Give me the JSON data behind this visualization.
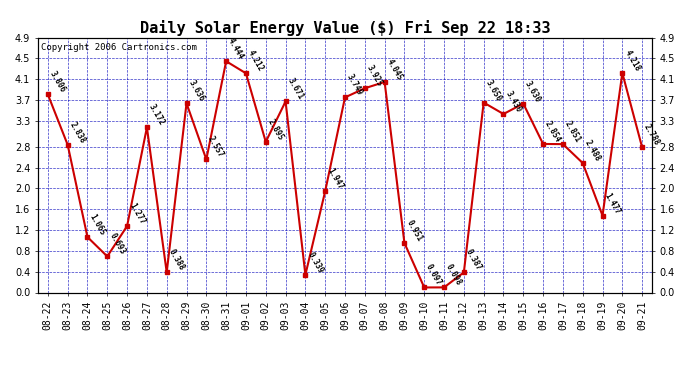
{
  "title": "Daily Solar Energy Value ($) Fri Sep 22 18:33",
  "copyright": "Copyright 2006 Cartronics.com",
  "dates": [
    "08-22",
    "08-23",
    "08-24",
    "08-25",
    "08-26",
    "08-27",
    "08-28",
    "08-29",
    "08-30",
    "08-31",
    "09-01",
    "09-02",
    "09-03",
    "09-04",
    "09-05",
    "09-06",
    "09-07",
    "09-08",
    "09-09",
    "09-10",
    "09-11",
    "09-12",
    "09-13",
    "09-14",
    "09-15",
    "09-16",
    "09-17",
    "09-18",
    "09-19",
    "09-20",
    "09-21"
  ],
  "values": [
    3.806,
    2.838,
    1.065,
    0.693,
    1.277,
    3.172,
    0.388,
    3.636,
    2.557,
    4.444,
    4.212,
    2.895,
    3.671,
    0.339,
    1.947,
    3.749,
    3.925,
    4.045,
    0.951,
    0.097,
    0.098,
    0.387,
    3.65,
    3.43,
    3.63,
    2.854,
    2.851,
    2.488,
    1.477,
    4.218,
    2.788
  ],
  "labels": [
    "3.806",
    "2.838",
    "1.065",
    "0.693",
    "1.277",
    "3.172",
    "0.388",
    "3.636",
    "2.557",
    "4.444",
    "4.212",
    "2.895",
    "3.671",
    "0.339",
    "1.947",
    "3.749",
    "3.925",
    "4.045",
    "0.951",
    "0.097",
    "0.098",
    "0.387",
    "3.650",
    "3.430",
    "3.630",
    "2.854",
    "2.851",
    "2.488",
    "1.477",
    "4.218",
    "2.788"
  ],
  "line_color": "#cc0000",
  "marker_color": "#cc0000",
  "bg_color": "#ffffff",
  "plot_bg_color": "#ffffff",
  "grid_color": "#0000bb",
  "title_color": "#000000",
  "label_color": "#000000",
  "axis_color": "#000000",
  "ylim": [
    0.0,
    4.9
  ],
  "yticks": [
    0.0,
    0.4,
    0.8,
    1.2,
    1.6,
    2.0,
    2.4,
    2.8,
    3.3,
    3.7,
    4.1,
    4.5,
    4.9
  ],
  "title_fontsize": 11,
  "label_fontsize": 5.5,
  "copyright_fontsize": 6.5,
  "tick_fontsize": 7
}
